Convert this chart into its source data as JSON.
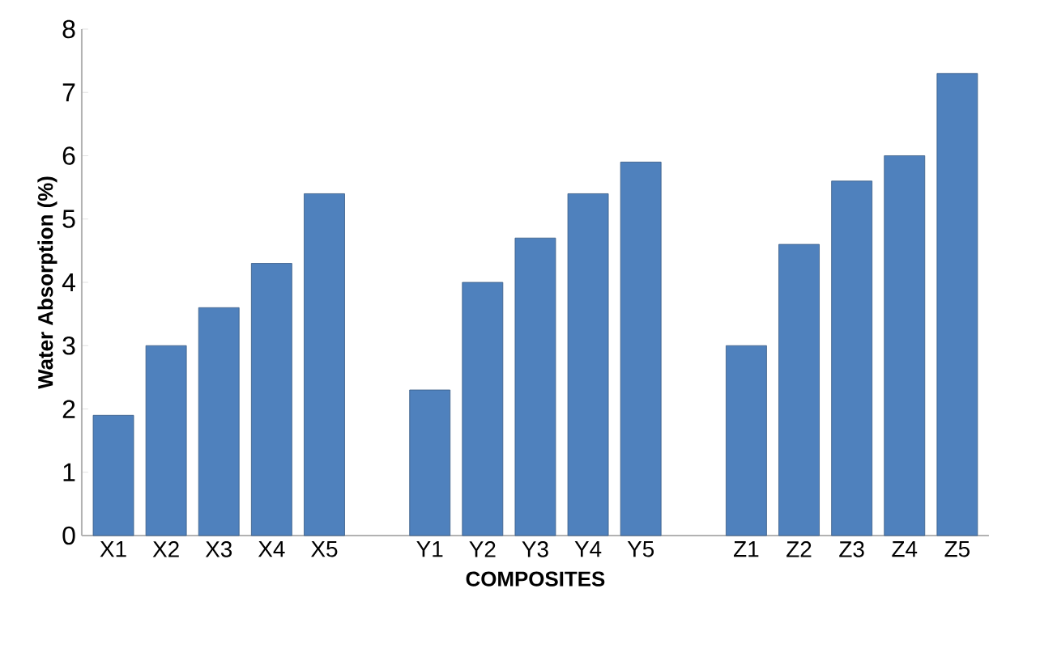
{
  "chart_data": {
    "type": "bar",
    "xlabel": "COMPOSITES",
    "ylabel": "Water Absorption (%)",
    "categories": [
      "X1",
      "X2",
      "X3",
      "X4",
      "X5",
      null,
      "Y1",
      "Y2",
      "Y3",
      "Y4",
      "Y5",
      null,
      "Z1",
      "Z2",
      "Z3",
      "Z4",
      "Z5"
    ],
    "values": [
      1.9,
      3.0,
      3.6,
      4.3,
      5.4,
      null,
      2.3,
      4.0,
      4.7,
      5.4,
      5.9,
      null,
      3.0,
      4.6,
      5.6,
      6.0,
      7.3
    ],
    "color": "#4f81bd",
    "ylim": [
      0,
      8
    ],
    "yticks": [
      0,
      1,
      2,
      3,
      4,
      5,
      6,
      7,
      8
    ],
    "grid": false
  }
}
